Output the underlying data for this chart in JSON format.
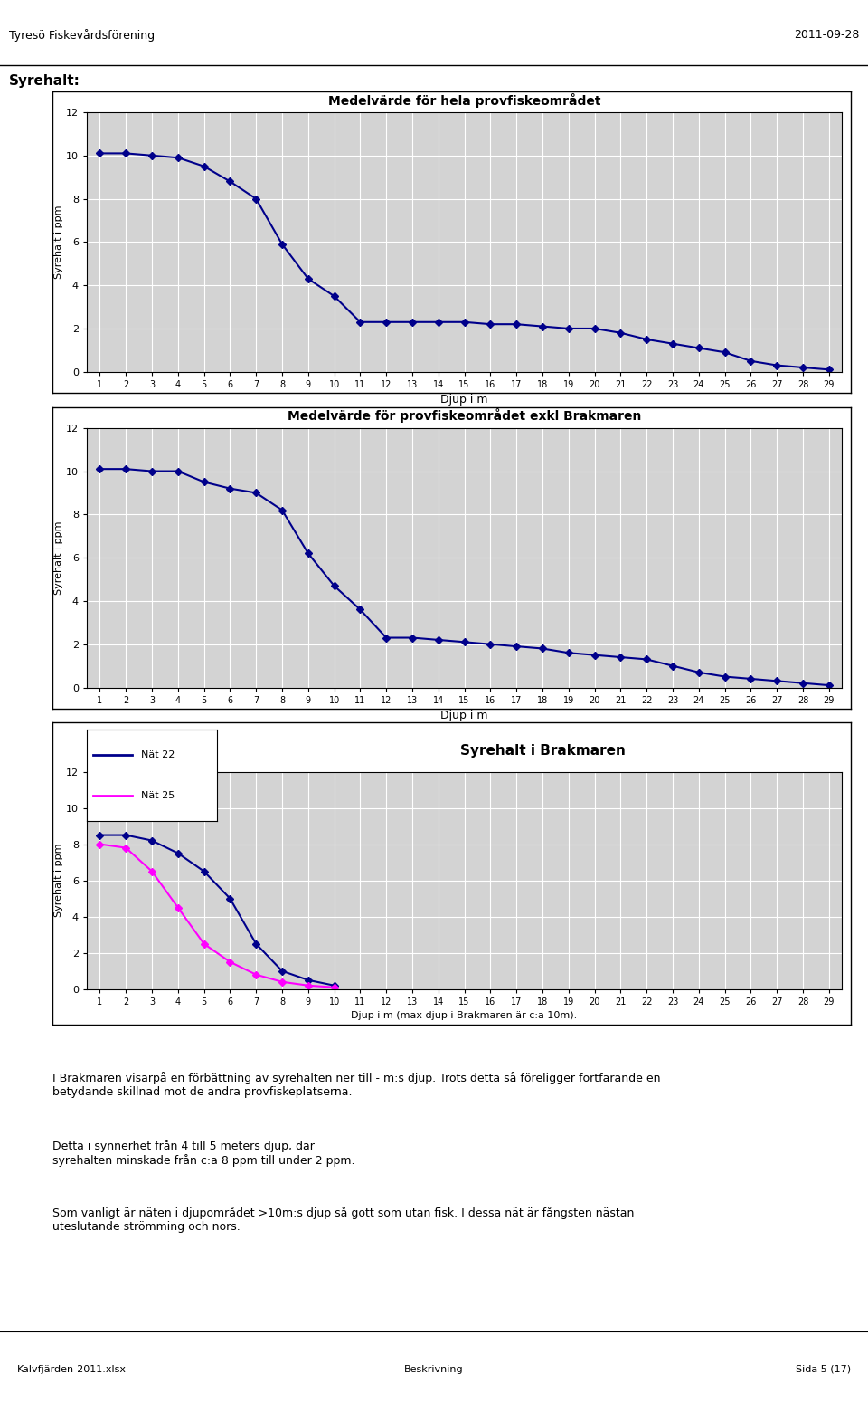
{
  "chart1_title": "Medelvärde för hela provfiskeområdet",
  "chart2_title": "Medelvärde för provfiskeområdet exkl Brakmaren",
  "chart3_title": "Syrehalt i Brakmaren",
  "ylabel": "Syrehalt i ppm",
  "xlabel": "Djup i m",
  "xlabel3": "Djup i m (max djup i Brakmaren är c:a 10m).",
  "header_left": "Tyresö Fiskevårdsförening",
  "header_right": "2011-09-28",
  "section_title": "Syrehalt:",
  "footer_left": "Kalvfjärden-2011.xlsx",
  "footer_center": "Beskrivning",
  "footer_right": "Sida 5 (17)",
  "legend_nat22": "Nät 22",
  "legend_nat25": "Nät 25",
  "chart1_x": [
    1,
    2,
    3,
    4,
    5,
    6,
    7,
    8,
    9,
    10,
    11,
    12,
    13,
    14,
    15,
    16,
    17,
    18,
    19,
    20,
    21,
    22,
    23,
    24,
    25,
    26,
    27,
    28,
    29
  ],
  "chart1_y": [
    10.1,
    10.1,
    10.0,
    9.9,
    9.5,
    8.8,
    8.0,
    5.9,
    4.3,
    3.5,
    2.3,
    2.3,
    2.3,
    2.3,
    2.3,
    2.2,
    2.2,
    2.1,
    2.0,
    2.0,
    1.8,
    1.5,
    1.3,
    1.1,
    0.9,
    0.5,
    0.3,
    0.2,
    0.1
  ],
  "chart2_x": [
    1,
    2,
    3,
    4,
    5,
    6,
    7,
    8,
    9,
    10,
    11,
    12,
    13,
    14,
    15,
    16,
    17,
    18,
    19,
    20,
    21,
    22,
    23,
    24,
    25,
    26,
    27,
    28,
    29
  ],
  "chart2_y": [
    10.1,
    10.1,
    10.0,
    10.0,
    9.5,
    9.2,
    9.0,
    8.2,
    6.2,
    4.7,
    3.6,
    2.3,
    2.3,
    2.2,
    2.1,
    2.0,
    1.9,
    1.8,
    1.6,
    1.5,
    1.4,
    1.3,
    1.0,
    0.7,
    0.5,
    0.4,
    0.3,
    0.2,
    0.1
  ],
  "nat22_x": [
    1,
    2,
    3,
    4,
    5,
    6,
    7,
    8,
    9,
    10
  ],
  "nat22_y": [
    8.5,
    8.5,
    8.2,
    7.5,
    6.5,
    5.0,
    2.5,
    1.0,
    0.5,
    0.2
  ],
  "nat25_x": [
    1,
    2,
    3,
    4,
    5,
    6,
    7,
    8,
    9,
    10
  ],
  "nat25_y": [
    8.0,
    7.8,
    6.5,
    4.5,
    2.5,
    1.5,
    0.8,
    0.4,
    0.2,
    0.1
  ],
  "line_color": "#00008B",
  "nat22_color": "#00008B",
  "nat25_color": "#FF00FF",
  "bg_color": "#C0C0C0",
  "plot_bg": "#D3D3D3",
  "ylim": [
    0,
    12
  ],
  "yticks": [
    0,
    2,
    4,
    6,
    8,
    10,
    12
  ],
  "text_para1": "I Brakmaren visarpå en förbättning av syrehalten ner till - m:s djup. Trots detta så föreligger fortfarande en\nbetydande skillnad mot de andra provfiskeplatserna.",
  "text_para2": "Detta i synnerhet från 4 till 5 meters djup, där\nsyrehalten minskade från c:a 8 ppm till under 2 ppm.",
  "text_para3": "Som vanligt är näten i djupområdet >10m:s djup så gott som utan fisk. I dessa nät är fångsten nästan\nuteslutande strömming och nors."
}
